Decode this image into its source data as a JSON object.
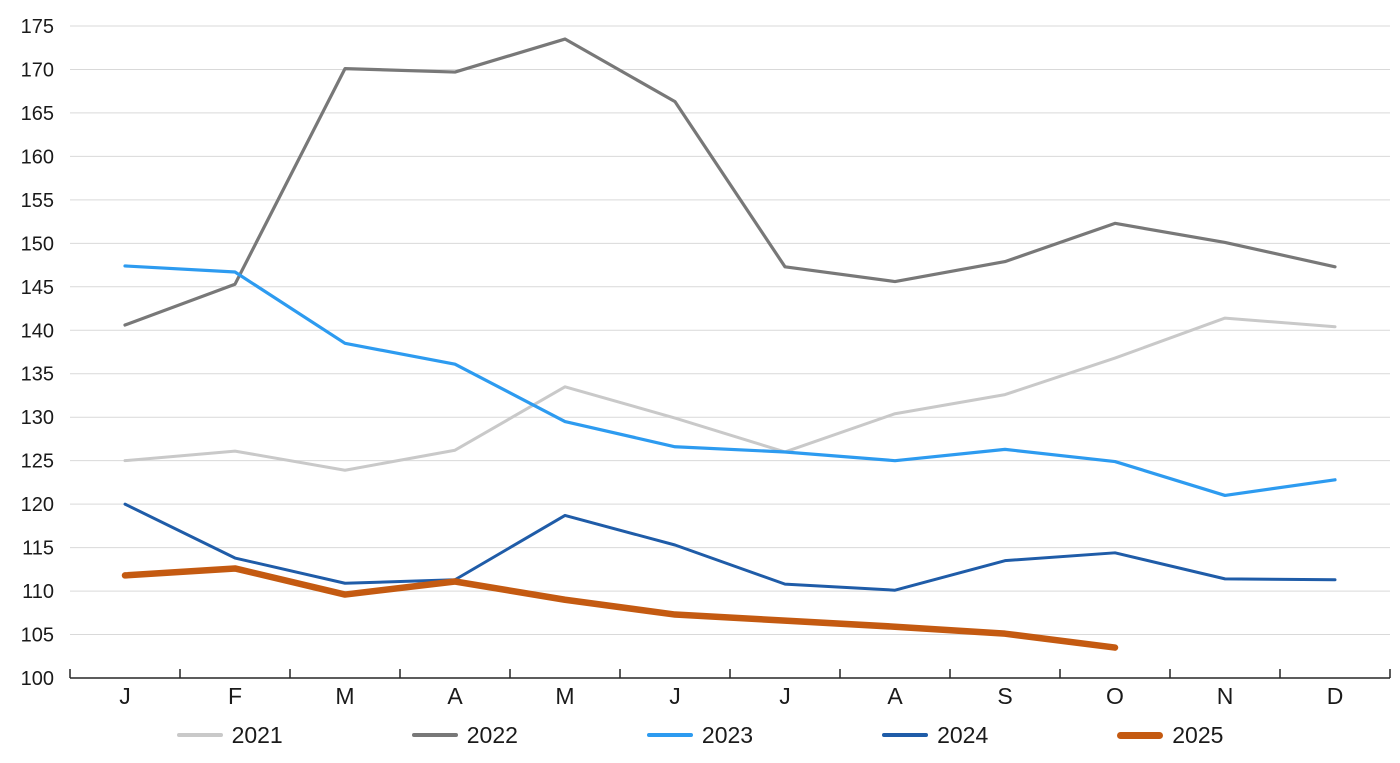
{
  "chart_data": {
    "type": "line",
    "title": "",
    "xlabel": "",
    "ylabel": "",
    "ylim": [
      100,
      175
    ],
    "grid": true,
    "legend_position": "bottom",
    "x_labels": [
      "J",
      "F",
      "M",
      "A",
      "M",
      "J",
      "J",
      "A",
      "S",
      "O",
      "N",
      "D"
    ],
    "y_ticks": [
      100,
      105,
      110,
      115,
      120,
      125,
      130,
      135,
      140,
      145,
      150,
      155,
      160,
      165,
      170,
      175
    ],
    "series": [
      {
        "name": "2021",
        "color": "#c9c9c9",
        "line_width": 3,
        "values": [
          125.0,
          126.1,
          123.9,
          126.2,
          133.5,
          129.9,
          126.0,
          130.4,
          132.6,
          136.8,
          141.4,
          140.4
        ]
      },
      {
        "name": "2022",
        "color": "#787878",
        "line_width": 3.2,
        "values": [
          140.6,
          145.3,
          170.1,
          169.7,
          173.5,
          166.3,
          147.3,
          145.6,
          147.9,
          152.3,
          150.1,
          147.3
        ]
      },
      {
        "name": "2023",
        "color": "#2d9bf0",
        "line_width": 3.2,
        "values": [
          147.4,
          146.7,
          138.5,
          136.1,
          129.5,
          126.6,
          126.0,
          125.0,
          126.3,
          124.9,
          121.0,
          122.8
        ]
      },
      {
        "name": "2024",
        "color": "#1f5ca8",
        "line_width": 3,
        "values": [
          120.0,
          113.8,
          110.9,
          111.3,
          118.7,
          115.3,
          110.8,
          110.1,
          113.5,
          114.4,
          111.4,
          111.3
        ]
      },
      {
        "name": "2025",
        "color": "#c45a11",
        "line_width": 6.5,
        "values": [
          111.8,
          112.6,
          109.6,
          111.1,
          109.0,
          107.3,
          106.6,
          105.9,
          105.1,
          103.5
        ]
      }
    ]
  },
  "style": {
    "gridline_color": "#d9d9d9",
    "axis_color": "#262626",
    "tick_label_color": "#1a1a1a"
  }
}
